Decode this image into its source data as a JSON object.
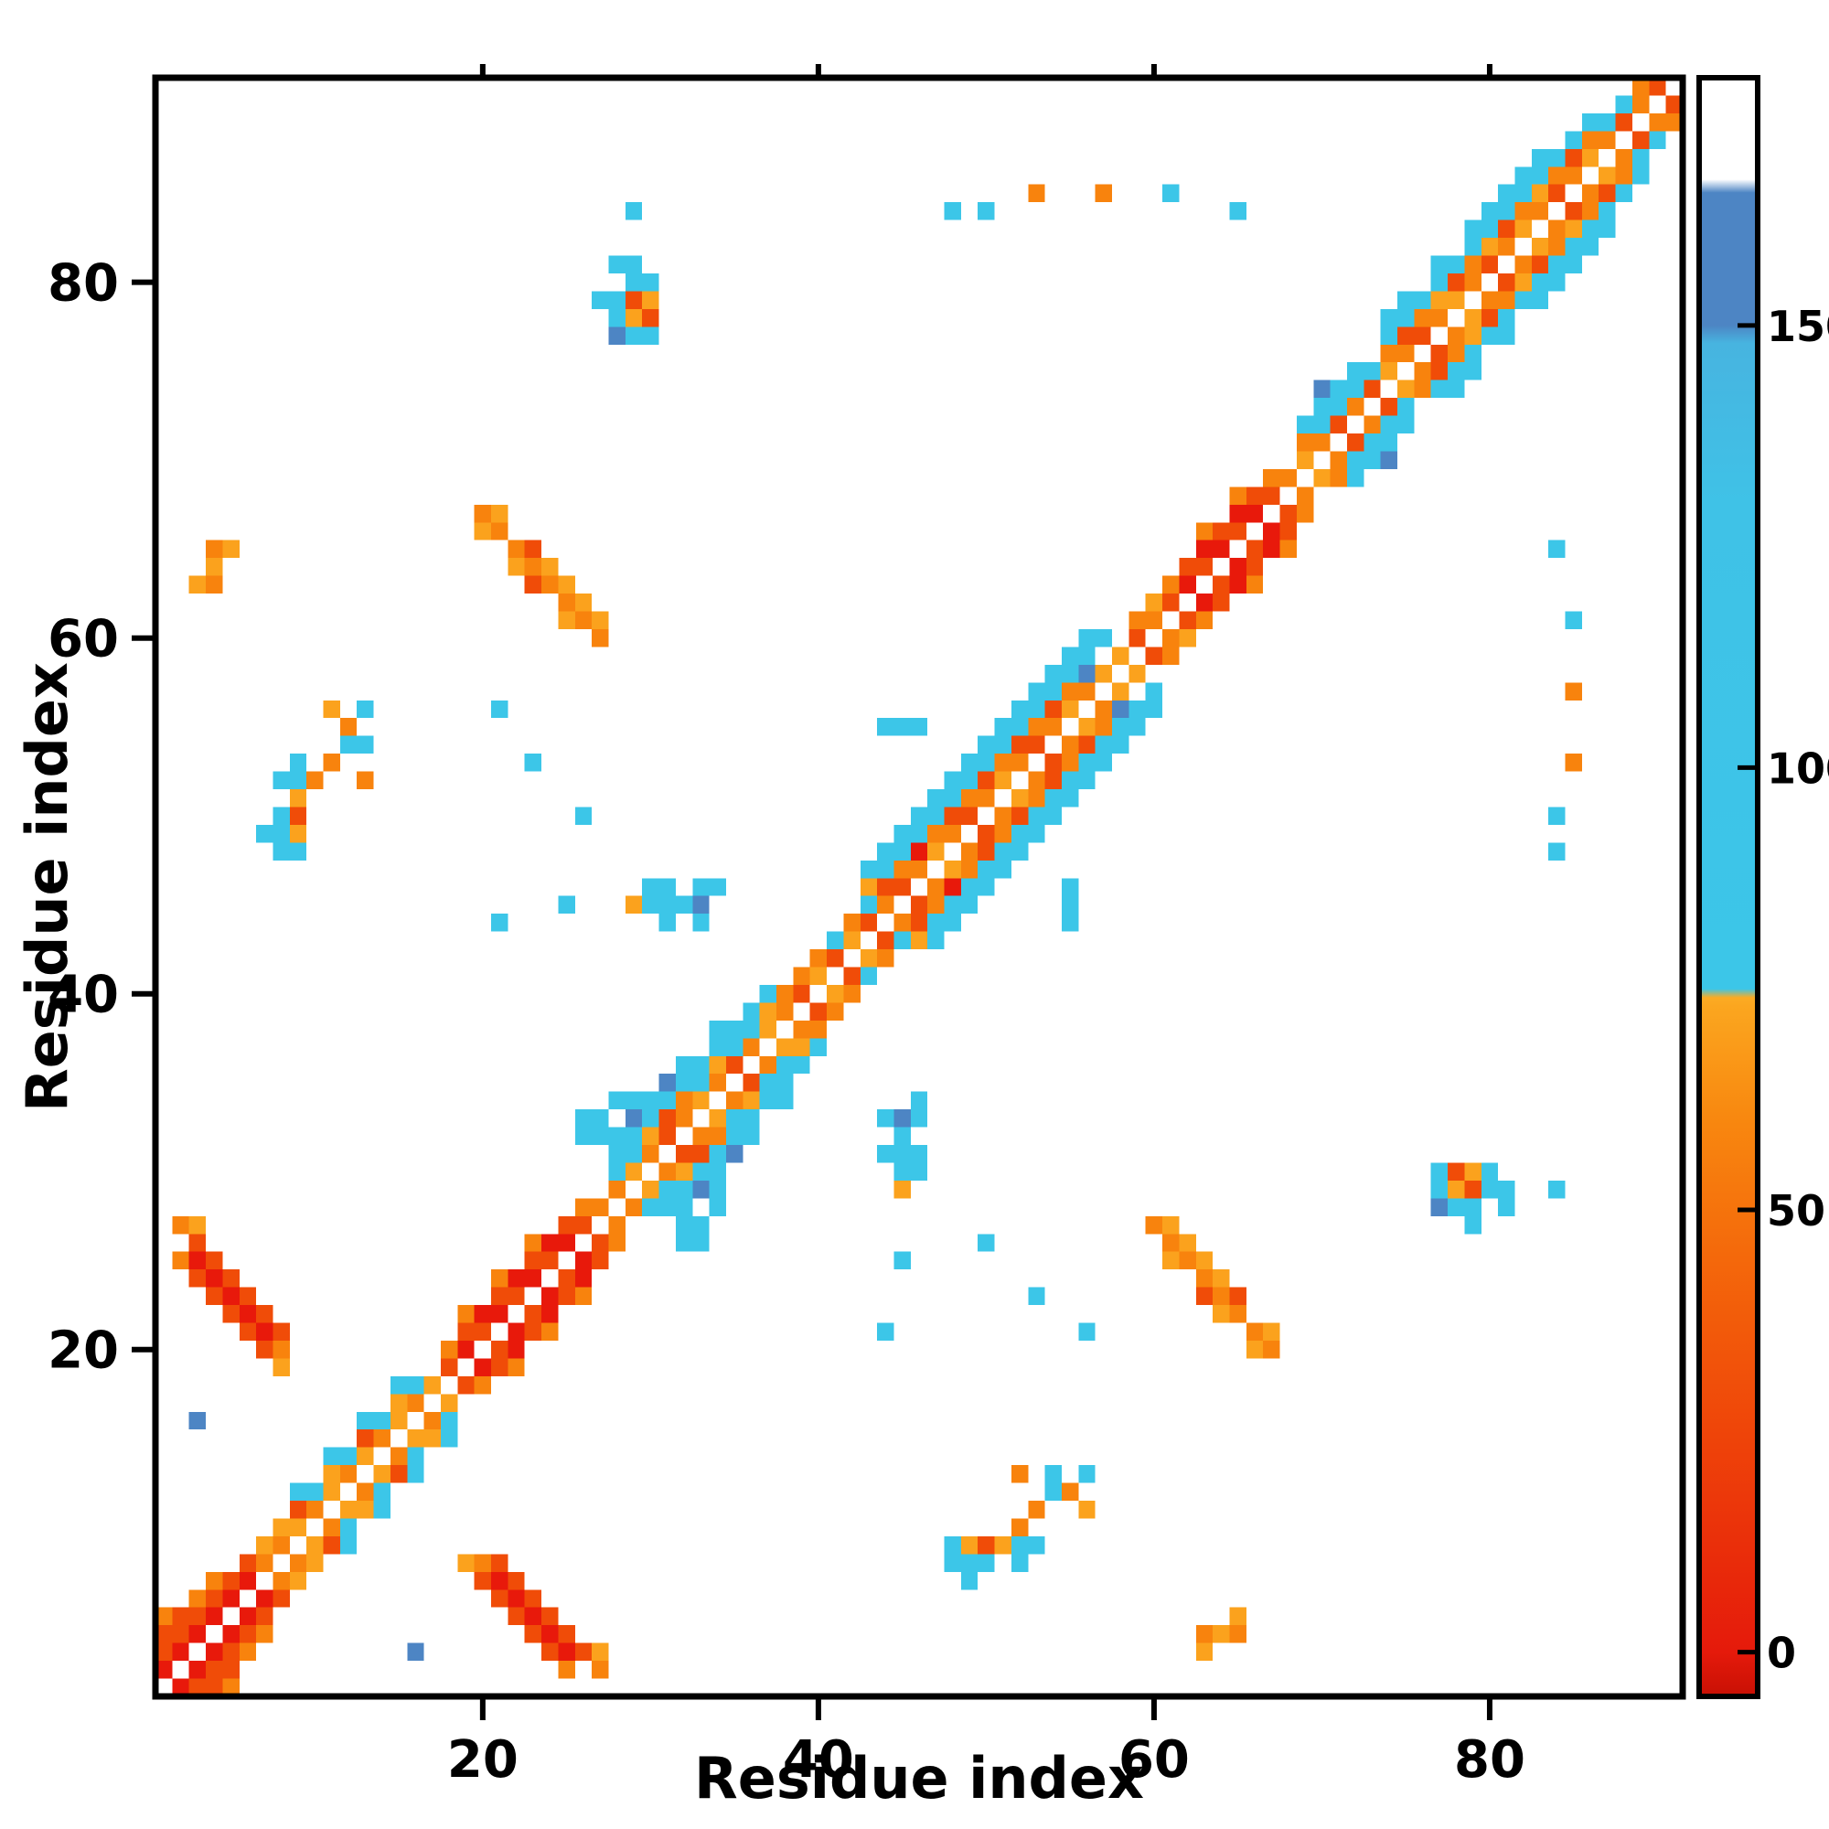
{
  "chart_data": {
    "type": "heatmap",
    "title": "",
    "xlabel": "Residue index",
    "ylabel": "Residue index",
    "x_range": [
      0.5,
      91.5
    ],
    "y_range": [
      0.5,
      91.5
    ],
    "x_ticks": [
      20,
      40,
      60,
      80
    ],
    "y_ticks": [
      20,
      40,
      60,
      80
    ],
    "grid": false,
    "legend_position": "none",
    "symmetric": true,
    "background": "#ffffff",
    "frame_color": "#000000",
    "value_classes": {
      "R": 8,
      "r": 30,
      "O": 55,
      "o": 68,
      "C": 100,
      "B": 156
    },
    "class_colors": {
      "R": "#e8190b",
      "r": "#f04c08",
      "O": "#f8830d",
      "o": "#fba21d",
      "C": "#3cc6e8",
      "B": "#4d85c4"
    },
    "cells": {
      "R": [
        [
          1,
          2
        ],
        [
          2,
          3
        ],
        [
          3,
          4
        ],
        [
          4,
          5
        ],
        [
          5,
          6
        ],
        [
          6,
          7
        ],
        [
          19,
          20
        ],
        [
          21,
          22
        ],
        [
          23,
          24
        ],
        [
          25,
          26
        ],
        [
          20,
          22
        ],
        [
          22,
          24
        ],
        [
          24,
          26
        ],
        [
          46,
          48
        ],
        [
          62,
          63
        ],
        [
          64,
          65
        ],
        [
          66,
          67
        ],
        [
          63,
          65
        ],
        [
          65,
          67
        ],
        [
          7,
          21
        ],
        [
          6,
          22
        ],
        [
          5,
          23
        ],
        [
          4,
          24
        ],
        [
          3,
          25
        ]
      ],
      "r": [
        [
          1,
          3
        ],
        [
          2,
          4
        ],
        [
          3,
          5
        ],
        [
          4,
          6
        ],
        [
          5,
          7
        ],
        [
          6,
          8
        ],
        [
          1,
          4
        ],
        [
          2,
          5
        ],
        [
          9,
          11
        ],
        [
          13,
          15
        ],
        [
          18,
          19
        ],
        [
          20,
          21
        ],
        [
          22,
          23
        ],
        [
          24,
          25
        ],
        [
          26,
          27
        ],
        [
          19,
          21
        ],
        [
          21,
          23
        ],
        [
          23,
          25
        ],
        [
          25,
          27
        ],
        [
          31,
          32
        ],
        [
          35,
          36
        ],
        [
          39,
          40
        ],
        [
          31,
          33
        ],
        [
          41,
          42
        ],
        [
          43,
          44
        ],
        [
          45,
          46
        ],
        [
          49,
          50
        ],
        [
          53,
          54
        ],
        [
          44,
          46
        ],
        [
          48,
          50
        ],
        [
          50,
          52
        ],
        [
          52,
          54
        ],
        [
          54,
          56
        ],
        [
          59,
          60
        ],
        [
          61,
          62
        ],
        [
          62,
          64
        ],
        [
          64,
          66
        ],
        [
          66,
          68
        ],
        [
          67,
          68
        ],
        [
          63,
          64
        ],
        [
          65,
          66
        ],
        [
          71,
          72
        ],
        [
          73,
          74
        ],
        [
          76,
          77
        ],
        [
          80,
          81
        ],
        [
          84,
          85
        ],
        [
          88,
          89
        ],
        [
          75,
          77
        ],
        [
          78,
          80
        ],
        [
          81,
          83
        ],
        [
          85,
          87
        ],
        [
          90,
          91
        ],
        [
          7,
          20
        ],
        [
          8,
          21
        ],
        [
          7,
          22
        ],
        [
          6,
          21
        ],
        [
          6,
          23
        ],
        [
          5,
          22
        ],
        [
          5,
          24
        ],
        [
          4,
          23
        ],
        [
          4,
          25
        ],
        [
          3,
          24
        ],
        [
          3,
          26
        ],
        [
          29,
          79
        ],
        [
          30,
          78
        ],
        [
          9,
          50
        ],
        [
          23,
          65
        ],
        [
          23,
          63
        ]
      ],
      "O": [
        [
          7,
          8
        ],
        [
          1,
          5
        ],
        [
          3,
          6
        ],
        [
          4,
          7
        ],
        [
          8,
          9
        ],
        [
          10,
          11
        ],
        [
          12,
          13
        ],
        [
          14,
          15
        ],
        [
          16,
          17
        ],
        [
          18,
          20
        ],
        [
          26,
          28
        ],
        [
          19,
          22
        ],
        [
          21,
          24
        ],
        [
          23,
          26
        ],
        [
          27,
          28
        ],
        [
          28,
          29
        ],
        [
          30,
          31
        ],
        [
          32,
          33
        ],
        [
          34,
          35
        ],
        [
          36,
          37
        ],
        [
          38,
          39
        ],
        [
          32,
          34
        ],
        [
          38,
          40
        ],
        [
          40,
          42
        ],
        [
          42,
          44
        ],
        [
          39,
          41
        ],
        [
          44,
          45
        ],
        [
          46,
          47
        ],
        [
          48,
          49
        ],
        [
          50,
          51
        ],
        [
          52,
          53
        ],
        [
          54,
          55
        ],
        [
          56,
          57
        ],
        [
          45,
          47
        ],
        [
          47,
          49
        ],
        [
          49,
          51
        ],
        [
          51,
          53
        ],
        [
          53,
          55
        ],
        [
          55,
          57
        ],
        [
          59,
          61
        ],
        [
          60,
          61
        ],
        [
          61,
          63
        ],
        [
          63,
          66
        ],
        [
          65,
          68
        ],
        [
          68,
          69
        ],
        [
          67,
          69
        ],
        [
          70,
          71
        ],
        [
          72,
          73
        ],
        [
          69,
          71
        ],
        [
          75,
          76
        ],
        [
          77,
          78
        ],
        [
          79,
          80
        ],
        [
          81,
          82
        ],
        [
          83,
          84
        ],
        [
          85,
          86
        ],
        [
          87,
          88
        ],
        [
          74,
          76
        ],
        [
          76,
          78
        ],
        [
          79,
          81
        ],
        [
          82,
          84
        ],
        [
          84,
          86
        ],
        [
          86,
          88
        ],
        [
          89,
          90
        ],
        [
          89,
          91
        ],
        [
          8,
          20
        ],
        [
          2,
          25
        ],
        [
          2,
          27
        ],
        [
          20,
          67
        ],
        [
          21,
          66
        ],
        [
          22,
          65
        ],
        [
          23,
          64
        ],
        [
          24,
          63
        ],
        [
          25,
          62
        ],
        [
          26,
          61
        ],
        [
          27,
          60
        ],
        [
          10,
          52
        ],
        [
          11,
          53
        ],
        [
          12,
          55
        ],
        [
          13,
          52
        ],
        [
          4,
          63
        ],
        [
          4,
          65
        ],
        [
          57,
          85
        ],
        [
          53,
          85
        ]
      ],
      "o": [
        [
          7,
          9
        ],
        [
          9,
          10
        ],
        [
          11,
          12
        ],
        [
          13,
          14
        ],
        [
          15,
          16
        ],
        [
          17,
          18
        ],
        [
          8,
          10
        ],
        [
          11,
          13
        ],
        [
          15,
          17
        ],
        [
          29,
          30
        ],
        [
          33,
          34
        ],
        [
          37,
          38
        ],
        [
          30,
          32
        ],
        [
          34,
          36
        ],
        [
          37,
          39
        ],
        [
          40,
          41
        ],
        [
          42,
          43
        ],
        [
          43,
          46
        ],
        [
          47,
          48
        ],
        [
          51,
          52
        ],
        [
          55,
          56
        ],
        [
          57,
          58
        ],
        [
          58,
          59
        ],
        [
          60,
          62
        ],
        [
          69,
          70
        ],
        [
          74,
          75
        ],
        [
          78,
          79
        ],
        [
          82,
          83
        ],
        [
          86,
          87
        ],
        [
          77,
          79
        ],
        [
          80,
          82
        ],
        [
          83,
          85
        ],
        [
          8,
          19
        ],
        [
          3,
          27
        ],
        [
          21,
          67
        ],
        [
          20,
          66
        ],
        [
          22,
          64
        ],
        [
          24,
          64
        ],
        [
          25,
          61
        ],
        [
          27,
          61
        ],
        [
          25,
          63
        ],
        [
          26,
          62
        ],
        [
          29,
          78
        ],
        [
          30,
          79
        ],
        [
          9,
          49
        ],
        [
          9,
          51
        ],
        [
          11,
          56
        ],
        [
          3,
          63
        ],
        [
          4,
          64
        ],
        [
          5,
          65
        ],
        [
          29,
          45
        ]
      ],
      "C": [
        [
          10,
          12
        ],
        [
          12,
          14
        ],
        [
          14,
          16
        ],
        [
          9,
          12
        ],
        [
          11,
          14
        ],
        [
          13,
          16
        ],
        [
          16,
          18
        ],
        [
          15,
          18
        ],
        [
          28,
          30
        ],
        [
          29,
          31
        ],
        [
          33,
          35
        ],
        [
          35,
          37
        ],
        [
          36,
          38
        ],
        [
          28,
          31
        ],
        [
          29,
          32
        ],
        [
          30,
          33
        ],
        [
          31,
          34
        ],
        [
          32,
          35
        ],
        [
          33,
          36
        ],
        [
          34,
          37
        ],
        [
          35,
          38
        ],
        [
          36,
          39
        ],
        [
          37,
          40
        ],
        [
          30,
          34
        ],
        [
          32,
          36
        ],
        [
          28,
          32
        ],
        [
          34,
          38
        ],
        [
          26,
          32
        ],
        [
          27,
          33
        ],
        [
          28,
          34
        ],
        [
          29,
          34
        ],
        [
          27,
          32
        ],
        [
          26,
          33
        ],
        [
          41,
          43
        ],
        [
          43,
          45
        ],
        [
          44,
          47
        ],
        [
          45,
          48
        ],
        [
          46,
          49
        ],
        [
          47,
          50
        ],
        [
          48,
          51
        ],
        [
          49,
          52
        ],
        [
          50,
          53
        ],
        [
          51,
          54
        ],
        [
          52,
          55
        ],
        [
          53,
          56
        ],
        [
          54,
          57
        ],
        [
          55,
          58
        ],
        [
          44,
          48
        ],
        [
          45,
          49
        ],
        [
          46,
          50
        ],
        [
          47,
          51
        ],
        [
          48,
          52
        ],
        [
          49,
          53
        ],
        [
          50,
          54
        ],
        [
          51,
          55
        ],
        [
          52,
          56
        ],
        [
          53,
          57
        ],
        [
          43,
          47
        ],
        [
          55,
          59
        ],
        [
          56,
          59
        ],
        [
          56,
          60
        ],
        [
          57,
          60
        ],
        [
          54,
          58
        ],
        [
          70,
          72
        ],
        [
          70,
          73
        ],
        [
          71,
          73
        ],
        [
          71,
          74
        ],
        [
          72,
          74
        ],
        [
          72,
          75
        ],
        [
          73,
          75
        ],
        [
          69,
          72
        ],
        [
          74,
          77
        ],
        [
          75,
          78
        ],
        [
          76,
          79
        ],
        [
          77,
          80
        ],
        [
          78,
          81
        ],
        [
          79,
          82
        ],
        [
          80,
          83
        ],
        [
          81,
          84
        ],
        [
          82,
          85
        ],
        [
          83,
          86
        ],
        [
          84,
          87
        ],
        [
          85,
          88
        ],
        [
          86,
          89
        ],
        [
          75,
          79
        ],
        [
          77,
          81
        ],
        [
          79,
          83
        ],
        [
          81,
          85
        ],
        [
          83,
          87
        ],
        [
          74,
          78
        ],
        [
          80,
          84
        ],
        [
          82,
          86
        ],
        [
          87,
          89
        ],
        [
          88,
          90
        ],
        [
          28,
          78
        ],
        [
          28,
          79
        ],
        [
          29,
          77
        ],
        [
          29,
          80
        ],
        [
          29,
          81
        ],
        [
          30,
          77
        ],
        [
          30,
          80
        ],
        [
          28,
          81
        ],
        [
          27,
          79
        ],
        [
          30,
          45
        ],
        [
          31,
          45
        ],
        [
          32,
          45
        ],
        [
          33,
          44
        ],
        [
          31,
          44
        ],
        [
          30,
          46
        ],
        [
          31,
          46
        ],
        [
          33,
          46
        ],
        [
          34,
          46
        ],
        [
          25,
          45
        ],
        [
          26,
          50
        ],
        [
          21,
          44
        ],
        [
          8,
          48
        ],
        [
          8,
          49
        ],
        [
          9,
          48
        ],
        [
          8,
          52
        ],
        [
          9,
          52
        ],
        [
          9,
          53
        ],
        [
          7,
          49
        ],
        [
          8,
          50
        ],
        [
          12,
          54
        ],
        [
          13,
          54
        ],
        [
          13,
          56
        ],
        [
          21,
          56
        ],
        [
          23,
          53
        ],
        [
          44,
          55
        ],
        [
          45,
          55
        ],
        [
          46,
          55
        ],
        [
          29,
          84
        ],
        [
          48,
          84
        ],
        [
          61,
          85
        ],
        [
          50,
          84
        ],
        [
          65,
          84
        ]
      ],
      "B": [
        [
          29,
          33
        ],
        [
          31,
          35
        ],
        [
          33,
          45
        ],
        [
          28,
          77
        ],
        [
          70,
          74
        ],
        [
          3,
          16
        ],
        [
          56,
          58
        ]
      ]
    },
    "colorbar": {
      "min": -5,
      "max": 178,
      "ticks": [
        0,
        50,
        100,
        150
      ],
      "tick_labels": [
        "0",
        "50",
        "100",
        "150"
      ],
      "stops": [
        [
          -5,
          "#c81004"
        ],
        [
          0,
          "#e51a0b"
        ],
        [
          25,
          "#ef4509"
        ],
        [
          45,
          "#f4690b"
        ],
        [
          60,
          "#f8870f"
        ],
        [
          73,
          "#fba61f"
        ],
        [
          74,
          "#fbab24"
        ],
        [
          75,
          "#3cc6e8"
        ],
        [
          130,
          "#3fc2e7"
        ],
        [
          148,
          "#47b4e0"
        ],
        [
          150,
          "#4d85c4"
        ],
        [
          165,
          "#4d85c4"
        ],
        [
          166.5,
          "#ffffff"
        ],
        [
          178,
          "#ffffff"
        ]
      ]
    }
  }
}
